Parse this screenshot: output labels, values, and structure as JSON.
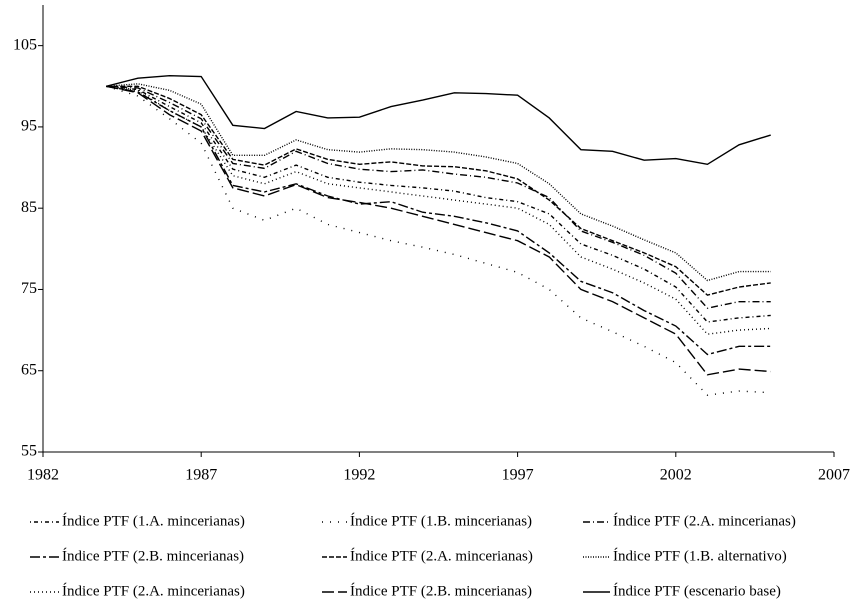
{
  "chart_data": {
    "type": "line",
    "x": [
      1984,
      1985,
      1986,
      1987,
      1988,
      1989,
      1990,
      1991,
      1992,
      1993,
      1994,
      1995,
      1996,
      1997,
      1998,
      1999,
      2000,
      2001,
      2002,
      2003,
      2004,
      2005
    ],
    "xlim": [
      1982,
      2007
    ],
    "xticks": [
      1982,
      1987,
      1992,
      1997,
      2002,
      2007
    ],
    "ylim": [
      55,
      110
    ],
    "yticks": [
      55,
      65,
      75,
      85,
      95,
      105
    ],
    "series": [
      {
        "name": "Índice PTF (1.A. mincerianas)",
        "color": "#000000",
        "dash": "1,3,4,3",
        "values": [
          100,
          99.6,
          97.5,
          95.5,
          89.8,
          88.8,
          90.3,
          88.8,
          88.2,
          87.8,
          87.5,
          87.1,
          86.3,
          85.8,
          84.3,
          80.6,
          79.2,
          77.5,
          75.3,
          71,
          71.5,
          71.8
        ]
      },
      {
        "name": "Índice PTF (1.B. mincerianas)",
        "color": "#000000",
        "dash": "1,7",
        "values": [
          100,
          98.8,
          96,
          93,
          85,
          83.5,
          85,
          83,
          82,
          81,
          80.2,
          79.3,
          78.2,
          77.1,
          75,
          71.5,
          69.8,
          68,
          66,
          62,
          62.5,
          62.3
        ]
      },
      {
        "name": "Índice PTF (2.A. mincerianas)",
        "color": "#000000",
        "dash": "7,3,1,3",
        "values": [
          100,
          99.8,
          98,
          96,
          90.5,
          89.9,
          92,
          90.5,
          89.8,
          89.5,
          89.7,
          89.2,
          88.8,
          88.1,
          86.3,
          82.2,
          80.8,
          79.2,
          77,
          72.7,
          73.5,
          73.5
        ]
      },
      {
        "name": "Índice PTF (2.B. mincerianas)",
        "color": "#000000",
        "dash": "10,3,3,3",
        "values": [
          100,
          99.3,
          97,
          95,
          87.8,
          87,
          88,
          86.5,
          85.5,
          85.8,
          84.5,
          84,
          83.2,
          82.2,
          79.5,
          76,
          74.6,
          72.4,
          70.5,
          67,
          68,
          68
        ]
      },
      {
        "name": "Índice PTF (2.A. mincerianas)",
        "color": "#000000",
        "dash": "5,2",
        "values": [
          100,
          100,
          98.5,
          96.5,
          91,
          90.3,
          92.3,
          91,
          90.4,
          90.7,
          90.2,
          90.1,
          89.6,
          88.6,
          86,
          82.5,
          81,
          79.5,
          77.8,
          74.3,
          75.3,
          75.8
        ]
      },
      {
        "name": "Índice PTF (1.B. alternativo)",
        "color": "#000000",
        "dash": "1,1.5",
        "values": [
          100,
          100.3,
          99.5,
          97.8,
          91.5,
          91.5,
          93.4,
          92.2,
          91.9,
          92.3,
          92.2,
          91.9,
          91.3,
          90.5,
          88,
          84.3,
          82.8,
          81.1,
          79.5,
          76.1,
          77.2,
          77.2
        ]
      },
      {
        "name": "Índice PTF (2.A. mincerianas)",
        "color": "#000000",
        "dash": "1,3",
        "values": [
          100,
          99.5,
          97,
          95,
          89,
          88,
          89.5,
          88,
          87.5,
          87,
          86.5,
          86,
          85.5,
          85,
          83,
          79,
          77.5,
          75.8,
          73.8,
          69.5,
          70,
          70.2
        ]
      },
      {
        "name": "Índice PTF (2.B. mincerianas)",
        "color": "#000000",
        "dash": "12,4",
        "values": [
          100,
          99.2,
          96.5,
          94.5,
          87.5,
          86.5,
          87.9,
          86.3,
          85.7,
          85,
          84,
          83,
          82,
          81,
          79,
          75,
          73.5,
          71.5,
          69.5,
          64.5,
          65.2,
          64.9
        ]
      },
      {
        "name": "Índice PTF (escenario base)",
        "color": "#000000",
        "dash": "none",
        "values": [
          100,
          101,
          101.3,
          101.2,
          95.2,
          94.8,
          96.9,
          96.1,
          96.2,
          97.5,
          98.3,
          99.2,
          99.1,
          98.9,
          96.1,
          92.2,
          92,
          90.9,
          91.1,
          90.4,
          92.8,
          94
        ]
      }
    ]
  }
}
